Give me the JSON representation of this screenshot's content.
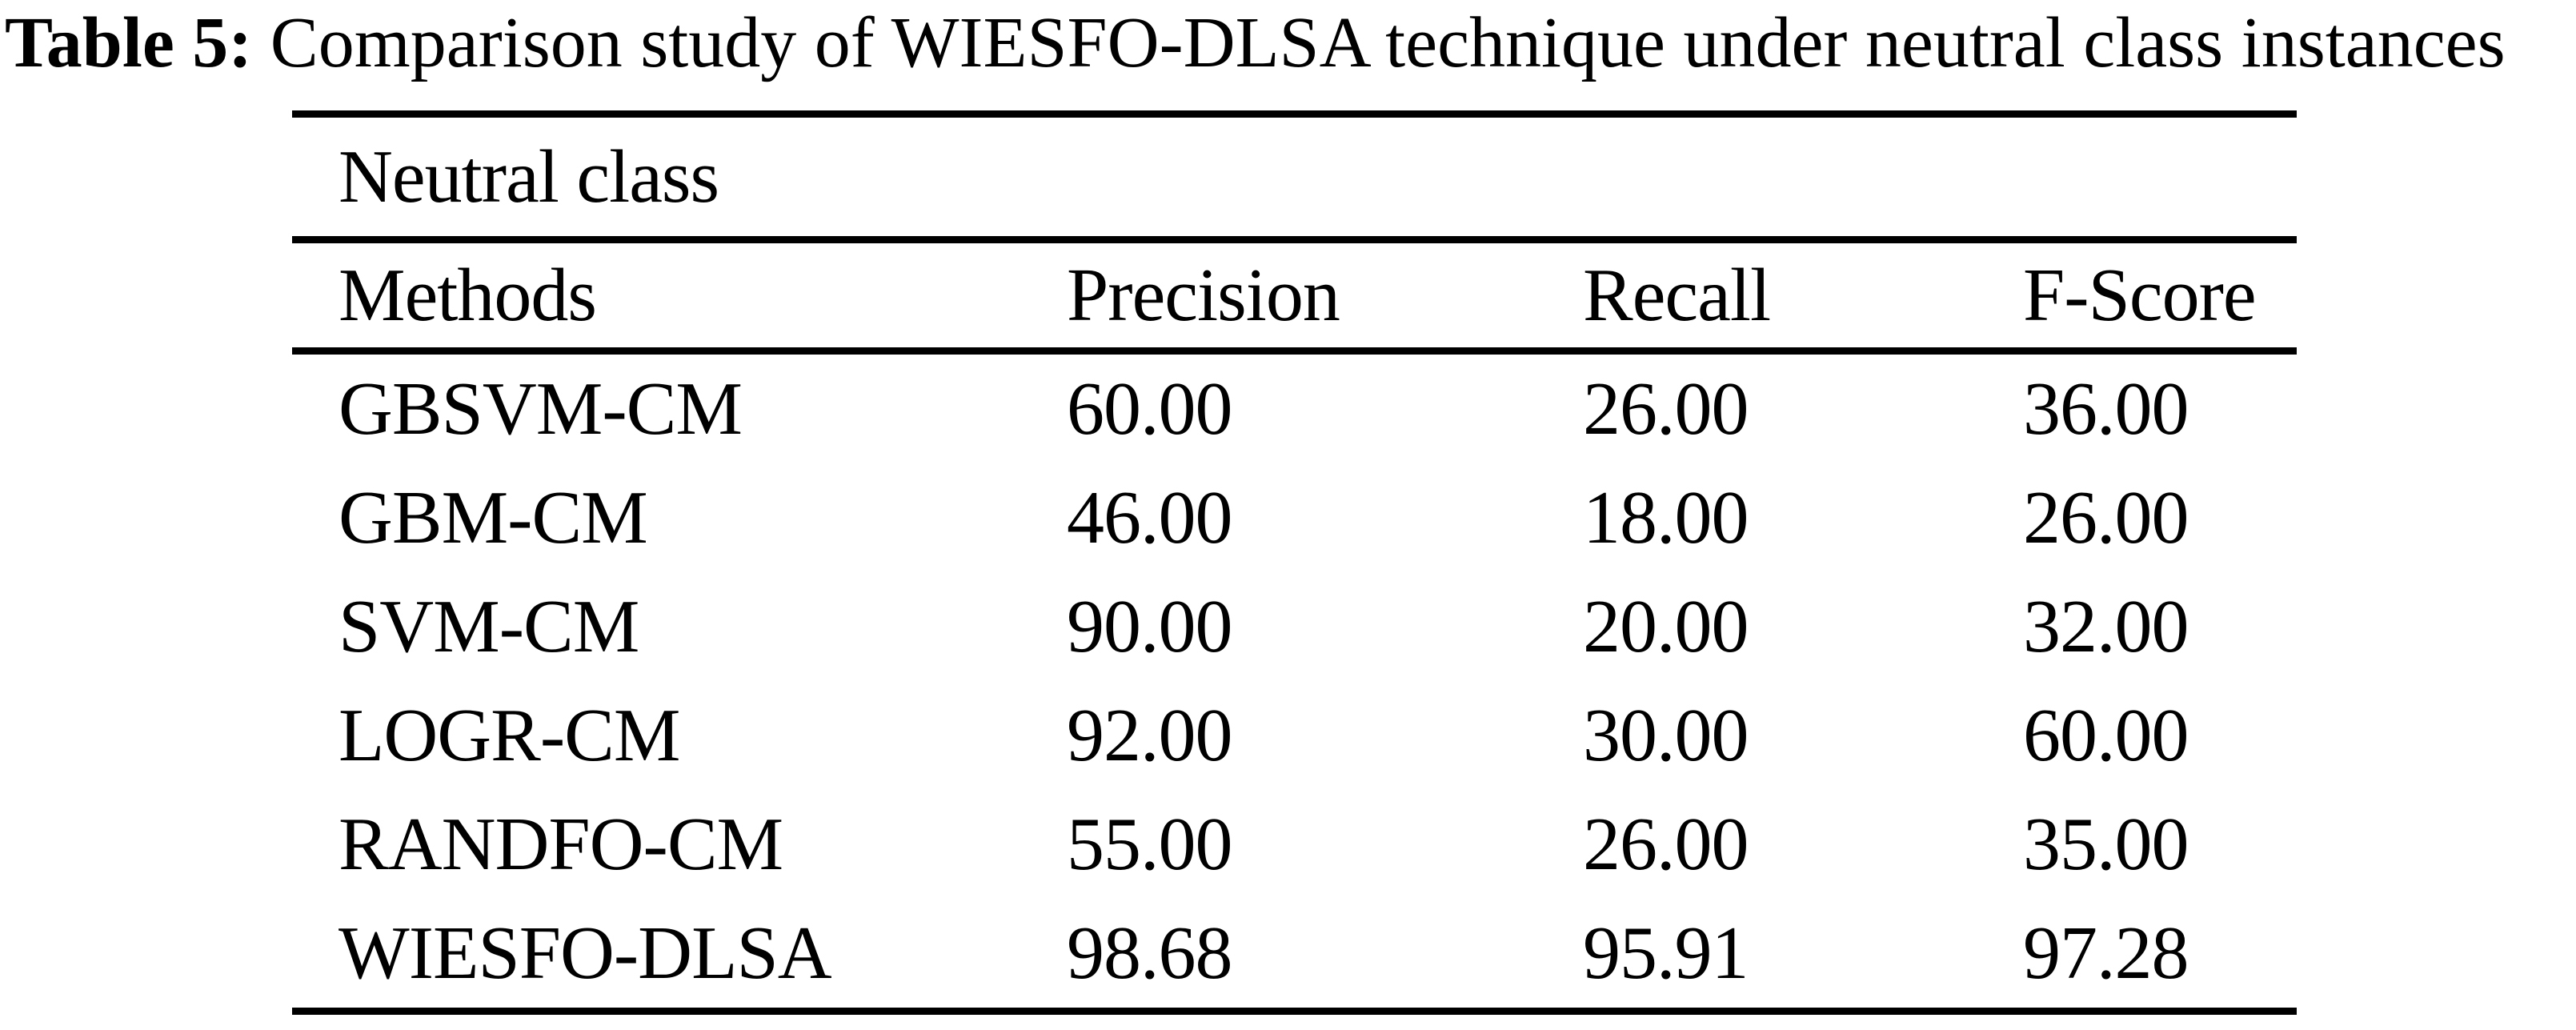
{
  "caption": {
    "label": "Table 5:",
    "text": "Comparison study of WIESFO-DLSA technique under neutral class instances"
  },
  "table": {
    "group_header": "Neutral class",
    "columns": [
      "Methods",
      "Precision",
      "Recall",
      "F-Score"
    ],
    "rows": [
      {
        "method": "GBSVM-CM",
        "precision": "60.00",
        "recall": "26.00",
        "fscore": "36.00"
      },
      {
        "method": "GBM-CM",
        "precision": "46.00",
        "recall": "18.00",
        "fscore": "26.00"
      },
      {
        "method": "SVM-CM",
        "precision": "90.00",
        "recall": "20.00",
        "fscore": "32.00"
      },
      {
        "method": "LOGR-CM",
        "precision": "92.00",
        "recall": "30.00",
        "fscore": "60.00"
      },
      {
        "method": "RANDFO-CM",
        "precision": "55.00",
        "recall": "26.00",
        "fscore": "35.00"
      },
      {
        "method": "WIESFO-DLSA",
        "precision": "98.68",
        "recall": "95.91",
        "fscore": "97.28"
      }
    ]
  },
  "chart_data": {
    "type": "table",
    "title": "Table 5: Comparison study of WIESFO-DLSA technique under neutral class instances",
    "group_header": "Neutral class",
    "columns": [
      "Methods",
      "Precision",
      "Recall",
      "F-Score"
    ],
    "rows": [
      [
        "GBSVM-CM",
        60.0,
        26.0,
        36.0
      ],
      [
        "GBM-CM",
        46.0,
        18.0,
        26.0
      ],
      [
        "SVM-CM",
        90.0,
        20.0,
        32.0
      ],
      [
        "LOGR-CM",
        92.0,
        30.0,
        60.0
      ],
      [
        "RANDFO-CM",
        55.0,
        26.0,
        35.0
      ],
      [
        "WIESFO-DLSA",
        98.68,
        95.91,
        97.28
      ]
    ],
    "colors": {
      "text": "#000000",
      "background": "#ffffff",
      "rules": "#000000"
    }
  }
}
